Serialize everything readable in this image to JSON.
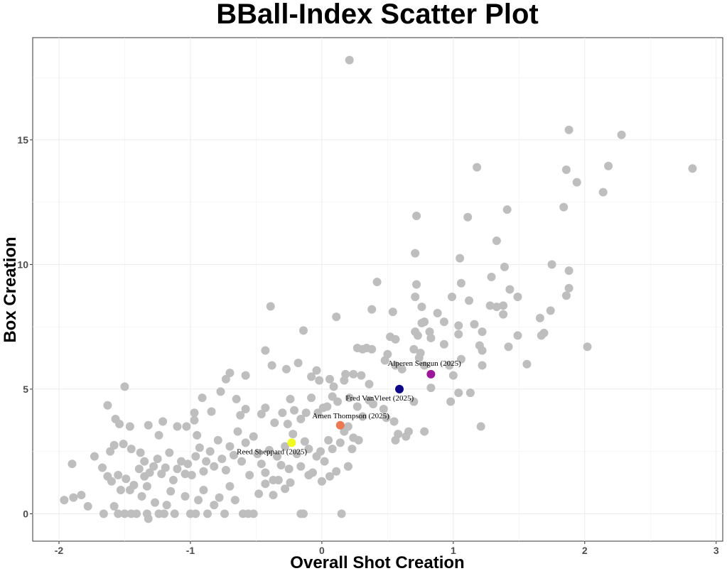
{
  "chart_data": {
    "type": "scatter",
    "title": "BBall-Index Scatter Plot",
    "xlabel": "Overall Shot Creation",
    "ylabel": "Box Creation",
    "xlim": [
      -2.2,
      3.05
    ],
    "ylim": [
      -1.1,
      19.1
    ],
    "xticks": [
      -2,
      -1,
      0,
      1,
      2,
      3
    ],
    "yticks": [
      0,
      5,
      10,
      15
    ],
    "grid": true,
    "legend": "none",
    "point_color": "#bebebe",
    "series": [
      {
        "points": [
          [
            0.21,
            18.2
          ],
          [
            1.18,
            13.9
          ],
          [
            1.88,
            15.4
          ],
          [
            2.28,
            15.2
          ],
          [
            2.82,
            13.85
          ],
          [
            2.18,
            13.95
          ],
          [
            1.86,
            13.8
          ],
          [
            1.94,
            13.3
          ],
          [
            2.14,
            12.9
          ],
          [
            1.84,
            12.3
          ],
          [
            1.41,
            12.2
          ],
          [
            0.72,
            11.95
          ],
          [
            1.11,
            11.9
          ],
          [
            1.33,
            10.95
          ],
          [
            0.71,
            10.45
          ],
          [
            1.05,
            10.25
          ],
          [
            0.42,
            9.3
          ],
          [
            0.72,
            9.2
          ],
          [
            1.06,
            9.25
          ],
          [
            1.29,
            9.5
          ],
          [
            1.39,
            9.9
          ],
          [
            1.75,
            10.0
          ],
          [
            1.88,
            9.75
          ],
          [
            1.88,
            9.05
          ],
          [
            1.86,
            8.75
          ],
          [
            0.71,
            8.7
          ],
          [
            0.99,
            8.7
          ],
          [
            1.12,
            8.55
          ],
          [
            1.43,
            9.0
          ],
          [
            1.49,
            8.7
          ],
          [
            1.28,
            8.35
          ],
          [
            1.33,
            8.3
          ],
          [
            1.38,
            8.35
          ],
          [
            1.38,
            8.0
          ],
          [
            1.74,
            8.15
          ],
          [
            1.66,
            7.85
          ],
          [
            -0.39,
            8.32
          ],
          [
            0.38,
            8.2
          ],
          [
            0.54,
            8.1
          ],
          [
            0.76,
            8.3
          ],
          [
            0.88,
            8.05
          ],
          [
            0.93,
            7.7
          ],
          [
            0.76,
            7.65
          ],
          [
            0.78,
            7.7
          ],
          [
            1.04,
            7.55
          ],
          [
            1.16,
            7.6
          ],
          [
            1.22,
            7.3
          ],
          [
            1.04,
            7.2
          ],
          [
            0.71,
            7.3
          ],
          [
            0.73,
            7.15
          ],
          [
            0.82,
            7.3
          ],
          [
            0.83,
            7.05
          ],
          [
            0.52,
            7.1
          ],
          [
            0.56,
            7.0
          ],
          [
            0.93,
            6.8
          ],
          [
            1.06,
            6.2
          ],
          [
            1.2,
            6.75
          ],
          [
            1.22,
            6.55
          ],
          [
            1.42,
            6.7
          ],
          [
            1.49,
            7.15
          ],
          [
            1.67,
            7.15
          ],
          [
            1.69,
            7.25
          ],
          [
            2.02,
            6.7
          ],
          [
            0.27,
            6.65
          ],
          [
            0.31,
            6.6
          ],
          [
            0.34,
            6.65
          ],
          [
            0.38,
            6.6
          ],
          [
            0.5,
            6.4
          ],
          [
            0.7,
            6.6
          ],
          [
            0.75,
            6.45
          ],
          [
            0.74,
            6.25
          ],
          [
            0.78,
            5.95
          ],
          [
            0.97,
            5.95
          ],
          [
            1.0,
            5.55
          ],
          [
            1.22,
            5.95
          ],
          [
            1.56,
            6.0
          ],
          [
            -0.14,
            7.35
          ],
          [
            0.11,
            7.9
          ],
          [
            -0.43,
            6.55
          ],
          [
            -0.38,
            5.95
          ],
          [
            -0.27,
            5.8
          ],
          [
            -0.7,
            5.65
          ],
          [
            -0.58,
            5.55
          ],
          [
            -0.18,
            6.05
          ],
          [
            -0.04,
            5.75
          ],
          [
            -0.08,
            5.5
          ],
          [
            -0.02,
            5.35
          ],
          [
            0.06,
            5.4
          ],
          [
            0.09,
            5.1
          ],
          [
            0.18,
            5.6
          ],
          [
            0.17,
            5.35
          ],
          [
            0.24,
            5.6
          ],
          [
            0.3,
            5.55
          ],
          [
            0.36,
            5.2
          ],
          [
            0.48,
            6.15
          ],
          [
            0.56,
            5.95
          ],
          [
            0.61,
            5.8
          ],
          [
            0.83,
            5.05
          ],
          [
            0.98,
            4.5
          ],
          [
            1.04,
            4.85
          ],
          [
            1.13,
            4.85
          ],
          [
            1.21,
            3.5
          ],
          [
            0.7,
            4.5
          ],
          [
            -1.5,
            5.1
          ],
          [
            -1.63,
            4.35
          ],
          [
            -1.57,
            3.8
          ],
          [
            -1.54,
            3.6
          ],
          [
            -1.46,
            3.5
          ],
          [
            -1.58,
            2.75
          ],
          [
            -1.61,
            2.5
          ],
          [
            -1.51,
            2.8
          ],
          [
            -1.45,
            2.6
          ],
          [
            -1.38,
            2.45
          ],
          [
            -1.35,
            2.1
          ],
          [
            -1.32,
            3.55
          ],
          [
            -1.24,
            3.15
          ],
          [
            -1.21,
            3.7
          ],
          [
            -1.1,
            3.5
          ],
          [
            -1.03,
            3.5
          ],
          [
            -0.97,
            4.05
          ],
          [
            -0.97,
            3.75
          ],
          [
            -0.95,
            3.15
          ],
          [
            -0.91,
            4.65
          ],
          [
            -0.84,
            4.1
          ],
          [
            -0.77,
            4.9
          ],
          [
            -0.73,
            5.4
          ],
          [
            -0.65,
            4.6
          ],
          [
            -0.62,
            3.95
          ],
          [
            -0.58,
            4.2
          ],
          [
            -0.46,
            4.0
          ],
          [
            -0.43,
            4.25
          ],
          [
            -0.36,
            3.65
          ],
          [
            -0.3,
            4.05
          ],
          [
            -0.26,
            3.6
          ],
          [
            -0.24,
            4.6
          ],
          [
            -0.21,
            4.15
          ],
          [
            -0.16,
            3.8
          ],
          [
            -0.12,
            4.05
          ],
          [
            -0.08,
            4.65
          ],
          [
            -0.03,
            4.05
          ],
          [
            0.01,
            4.25
          ],
          [
            0.04,
            4.3
          ],
          [
            0.08,
            4.7
          ],
          [
            0.12,
            4.5
          ],
          [
            0.21,
            4.65
          ],
          [
            0.27,
            4.3
          ],
          [
            0.31,
            3.9
          ],
          [
            0.36,
            4.55
          ],
          [
            0.39,
            4.4
          ],
          [
            0.47,
            4.2
          ],
          [
            0.49,
            3.85
          ],
          [
            0.55,
            3.7
          ],
          [
            0.58,
            3.2
          ],
          [
            0.64,
            3.1
          ],
          [
            0.66,
            3.3
          ],
          [
            0.78,
            3.3
          ],
          [
            0.56,
            2.95
          ],
          [
            0.2,
            3.5
          ],
          [
            0.24,
            3.05
          ],
          [
            0.28,
            2.95
          ],
          [
            -1.96,
            0.55
          ],
          [
            -1.89,
            0.65
          ],
          [
            -1.83,
            0.75
          ],
          [
            -1.9,
            2.0
          ],
          [
            -1.73,
            2.3
          ],
          [
            -1.67,
            1.85
          ],
          [
            -1.63,
            1.5
          ],
          [
            -1.6,
            1.3
          ],
          [
            -1.55,
            1.55
          ],
          [
            -1.53,
            0.95
          ],
          [
            -1.49,
            1.4
          ],
          [
            -1.46,
            0.95
          ],
          [
            -1.43,
            1.15
          ],
          [
            -1.39,
            1.8
          ],
          [
            -1.35,
            1.5
          ],
          [
            -1.33,
            1.1
          ],
          [
            -1.31,
            1.65
          ],
          [
            -1.28,
            1.9
          ],
          [
            -1.25,
            2.2
          ],
          [
            -1.22,
            1.6
          ],
          [
            -1.19,
            1.85
          ],
          [
            -1.16,
            2.45
          ],
          [
            -1.13,
            1.35
          ],
          [
            -1.1,
            1.8
          ],
          [
            -1.07,
            2.1
          ],
          [
            -1.04,
            1.6
          ],
          [
            -1.02,
            2.0
          ],
          [
            -0.99,
            1.55
          ],
          [
            -0.96,
            2.3
          ],
          [
            -0.93,
            2.65
          ],
          [
            -0.9,
            1.7
          ],
          [
            -0.88,
            2.1
          ],
          [
            -0.85,
            2.5
          ],
          [
            -0.82,
            1.9
          ],
          [
            -0.79,
            2.95
          ],
          [
            -0.76,
            2.2
          ],
          [
            -0.73,
            1.75
          ],
          [
            -0.7,
            2.7
          ],
          [
            -0.67,
            2.35
          ],
          [
            -0.64,
            3.3
          ],
          [
            -0.61,
            2.1
          ],
          [
            -0.58,
            2.85
          ],
          [
            -0.55,
            1.55
          ],
          [
            -0.52,
            3.1
          ],
          [
            -0.49,
            2.4
          ],
          [
            -0.46,
            2.0
          ],
          [
            -0.43,
            1.65
          ],
          [
            -0.4,
            2.55
          ],
          [
            -0.37,
            1.35
          ],
          [
            -0.34,
            2.3
          ],
          [
            -0.31,
            1.95
          ],
          [
            -0.28,
            2.7
          ],
          [
            -0.25,
            1.8
          ],
          [
            -0.22,
            3.2
          ],
          [
            -0.19,
            2.4
          ],
          [
            -0.16,
            1.9
          ],
          [
            -0.13,
            2.9
          ],
          [
            -0.1,
            2.6
          ],
          [
            -0.07,
            1.65
          ],
          [
            -0.04,
            2.3
          ],
          [
            -0.01,
            2.5
          ],
          [
            0.02,
            2.1
          ],
          [
            0.05,
            2.95
          ],
          [
            0.08,
            2.6
          ],
          [
            0.11,
            1.7
          ],
          [
            0.14,
            2.85
          ],
          [
            0.17,
            3.3
          ],
          [
            0.2,
            1.9
          ],
          [
            0.23,
            2.6
          ],
          [
            -1.78,
            0.3
          ],
          [
            -1.66,
            0.0
          ],
          [
            -1.58,
            0.3
          ],
          [
            -1.55,
            0.0
          ],
          [
            -1.5,
            0.0
          ],
          [
            -1.45,
            0.0
          ],
          [
            -1.41,
            0.0
          ],
          [
            -1.37,
            0.7
          ],
          [
            -1.33,
            0.0
          ],
          [
            -1.32,
            -0.2
          ],
          [
            -1.27,
            0.45
          ],
          [
            -1.24,
            0.0
          ],
          [
            -1.2,
            0.0
          ],
          [
            -1.18,
            0.35
          ],
          [
            -1.15,
            0.9
          ],
          [
            -1.12,
            0.0
          ],
          [
            -1.04,
            0.7
          ],
          [
            -1.0,
            0.0
          ],
          [
            -0.96,
            0.0
          ],
          [
            -0.94,
            0.55
          ],
          [
            -0.9,
            0.95
          ],
          [
            -0.87,
            0.0
          ],
          [
            -0.82,
            0.35
          ],
          [
            -0.78,
            0.65
          ],
          [
            -0.74,
            0.0
          ],
          [
            -0.7,
            1.1
          ],
          [
            -0.66,
            0.55
          ],
          [
            -0.6,
            0.0
          ],
          [
            -0.56,
            0.0
          ],
          [
            -0.52,
            0.0
          ],
          [
            -0.48,
            0.8
          ],
          [
            -0.43,
            1.2
          ],
          [
            -0.37,
            0.75
          ],
          [
            -0.33,
            1.35
          ],
          [
            -0.28,
            1.0
          ],
          [
            -0.24,
            1.25
          ],
          [
            -0.16,
            0.0
          ],
          [
            -0.14,
            0.0
          ],
          [
            -0.1,
            1.55
          ],
          [
            0.0,
            1.3
          ],
          [
            0.06,
            1.5
          ],
          [
            0.15,
            0.0
          ],
          [
            0.2,
            1.9
          ]
        ]
      }
    ],
    "highlighted": [
      {
        "label": "Alperen Sengun (2025)",
        "x": 0.83,
        "y": 5.6,
        "color": "#9b189a",
        "label_dx": -0.05,
        "label_dy": 0.45,
        "anchor": "middle"
      },
      {
        "label": "Fred VanVleet (2025)",
        "x": 0.59,
        "y": 5.0,
        "color": "#0d0887",
        "label_dx": -0.15,
        "label_dy": -0.35,
        "anchor": "middle"
      },
      {
        "label": "Amen Thompson (2025)",
        "x": 0.14,
        "y": 3.55,
        "color": "#ed7953",
        "label_dx": 0.08,
        "label_dy": 0.4,
        "anchor": "middle"
      },
      {
        "label": "Reed Sheppard (2025)",
        "x": -0.23,
        "y": 2.85,
        "color": "#f0f921",
        "label_dx": -0.15,
        "label_dy": -0.35,
        "anchor": "middle"
      }
    ]
  }
}
